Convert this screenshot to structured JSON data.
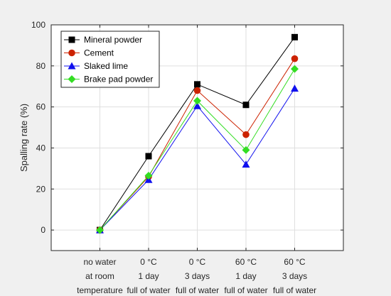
{
  "chart_data": {
    "type": "line",
    "categories": [
      [
        "no water",
        "at room",
        "temperature"
      ],
      [
        "0 °C",
        "1 day",
        "full of water"
      ],
      [
        "0 °C",
        "3 days",
        "full of water"
      ],
      [
        "60 °C",
        "1 day",
        "full of water"
      ],
      [
        "60 °C",
        "3 days",
        "full of water"
      ]
    ],
    "ylabel": "Spalling rate (%)",
    "xlabel": "",
    "ylim": [
      -10,
      100
    ],
    "yticks": [
      0,
      20,
      40,
      60,
      80,
      100
    ],
    "grid": true,
    "legend_position": "top-left",
    "series": [
      {
        "name": "Mineral powder",
        "values": [
          0,
          36,
          71,
          61,
          94
        ],
        "color": "#000000",
        "marker": "square"
      },
      {
        "name": "Cement",
        "values": [
          0,
          26,
          68,
          46.5,
          83.5
        ],
        "color": "#cc2200",
        "marker": "circle"
      },
      {
        "name": "Slaked lime",
        "values": [
          0,
          24.5,
          60.5,
          32,
          69
        ],
        "color": "#1010ee",
        "marker": "triangle"
      },
      {
        "name": "Brake pad powder",
        "values": [
          0,
          26.5,
          63,
          39,
          78.5
        ],
        "color": "#33dd22",
        "marker": "diamond"
      }
    ]
  }
}
